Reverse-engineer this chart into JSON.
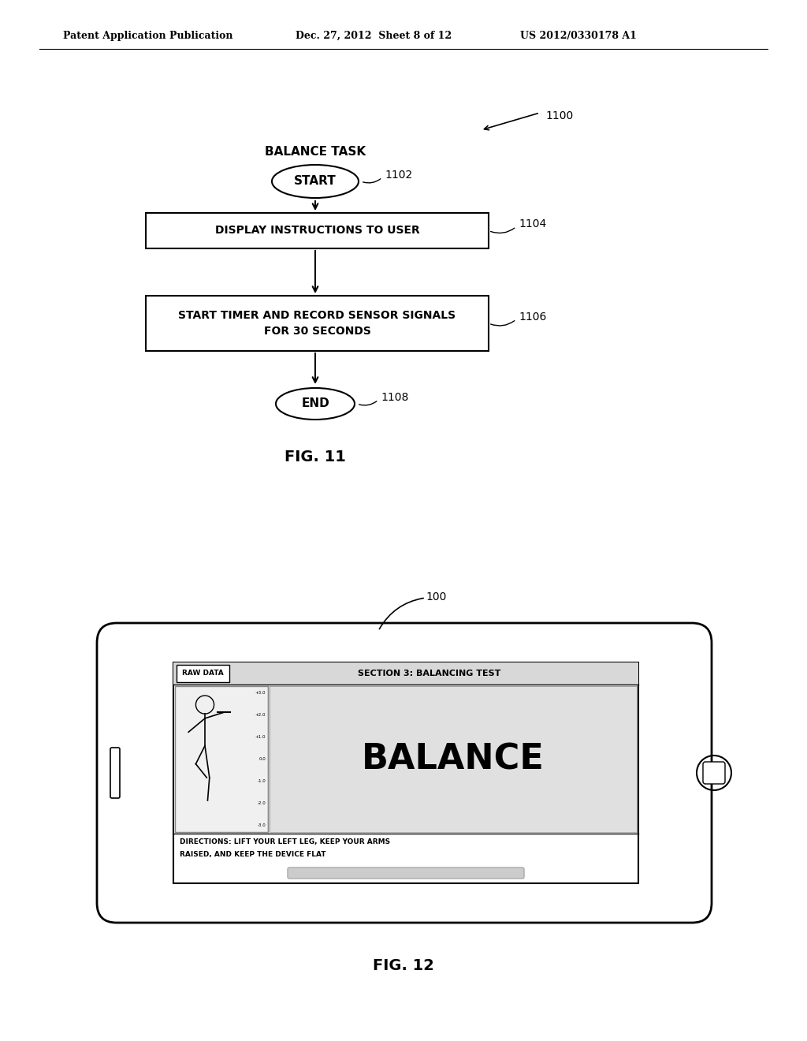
{
  "bg_color": "#ffffff",
  "header_left": "Patent Application Publication",
  "header_mid": "Dec. 27, 2012  Sheet 8 of 12",
  "header_right": "US 2012/0330178 A1",
  "fig11_label": "FIG. 11",
  "fig12_label": "FIG. 12",
  "diagram_title": "BALANCE TASK",
  "ref_1100": "1100",
  "ref_1102": "1102",
  "ref_1104": "1104",
  "ref_1106": "1106",
  "ref_1108": "1108",
  "ref_100": "100",
  "node_start_text": "START",
  "node_box1_text": "DISPLAY INSTRUCTIONS TO USER",
  "node_box2_line1": "START TIMER AND RECORD SENSOR SIGNALS",
  "node_box2_line2": "FOR 30 SECONDS",
  "node_end_text": "END",
  "phone_header": "SECTION 3: BALANCING TEST",
  "raw_data_btn": "RAW DATA",
  "balance_text": "BALANCE",
  "directions_line1": "DIRECTIONS: LIFT YOUR LEFT LEG, KEEP YOUR ARMS",
  "directions_line2": "RAISED, AND KEEP THE DEVICE FLAT",
  "accel_values": [
    "+3.0",
    "+2.0",
    "+1.0",
    "0.0",
    "-1.0",
    "-2.0",
    "-3.0"
  ]
}
